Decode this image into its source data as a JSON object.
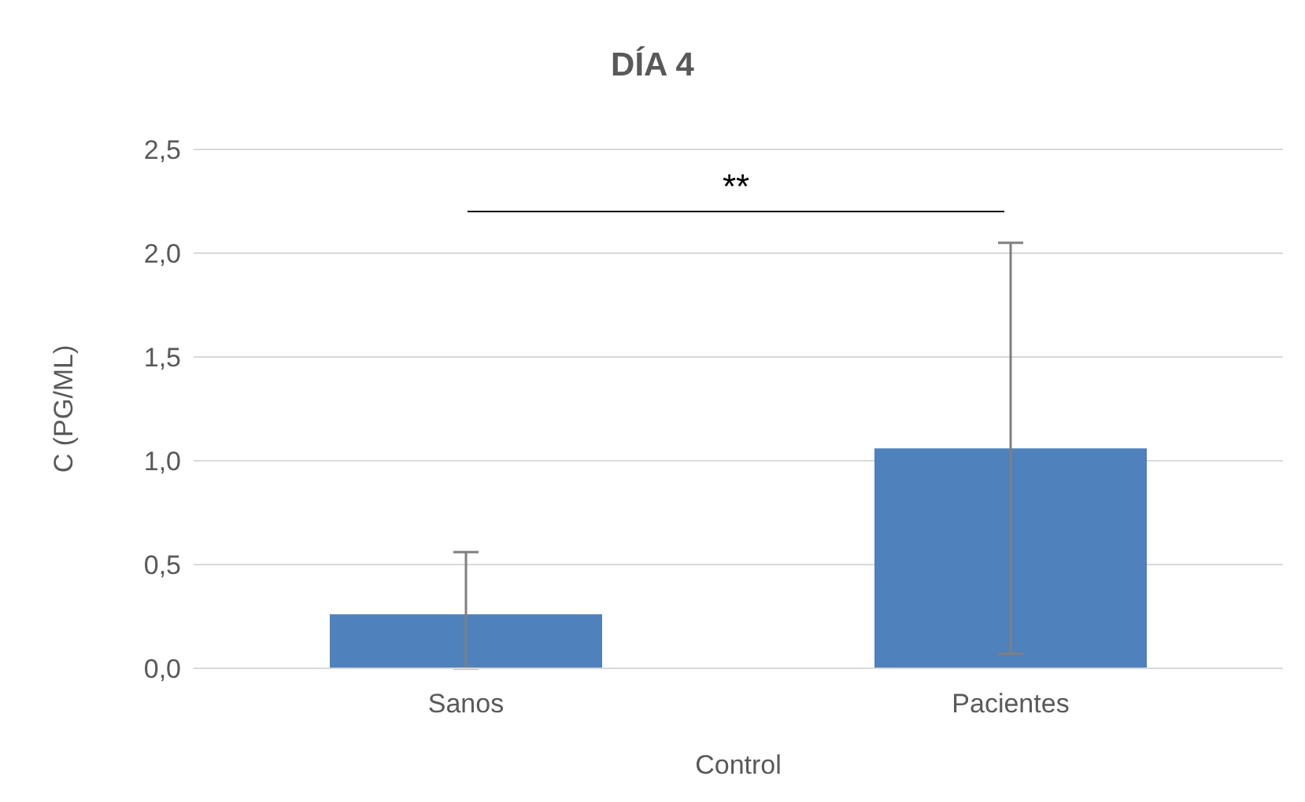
{
  "chart_data": {
    "type": "bar",
    "title": "DÍA 4",
    "ylabel": "C (PG/ML)",
    "xlabel": "Control",
    "categories": [
      "Sanos",
      "Pacientes"
    ],
    "values": [
      0.26,
      1.06
    ],
    "errors": [
      [
        0,
        0.56
      ],
      [
        0.07,
        2.05
      ]
    ],
    "color": "#4f81bd",
    "ylim": [
      0,
      2.5
    ],
    "yticks": [
      {
        "value": 0,
        "label": "0,0"
      },
      {
        "value": 0.5,
        "label": "0,5"
      },
      {
        "value": 1,
        "label": "1,0"
      },
      {
        "value": 1.5,
        "label": "1,5"
      },
      {
        "value": 2,
        "label": "2,0"
      },
      {
        "value": 2.5,
        "label": "2,5"
      }
    ],
    "grid": "y",
    "annotations": [
      "**"
    ]
  }
}
